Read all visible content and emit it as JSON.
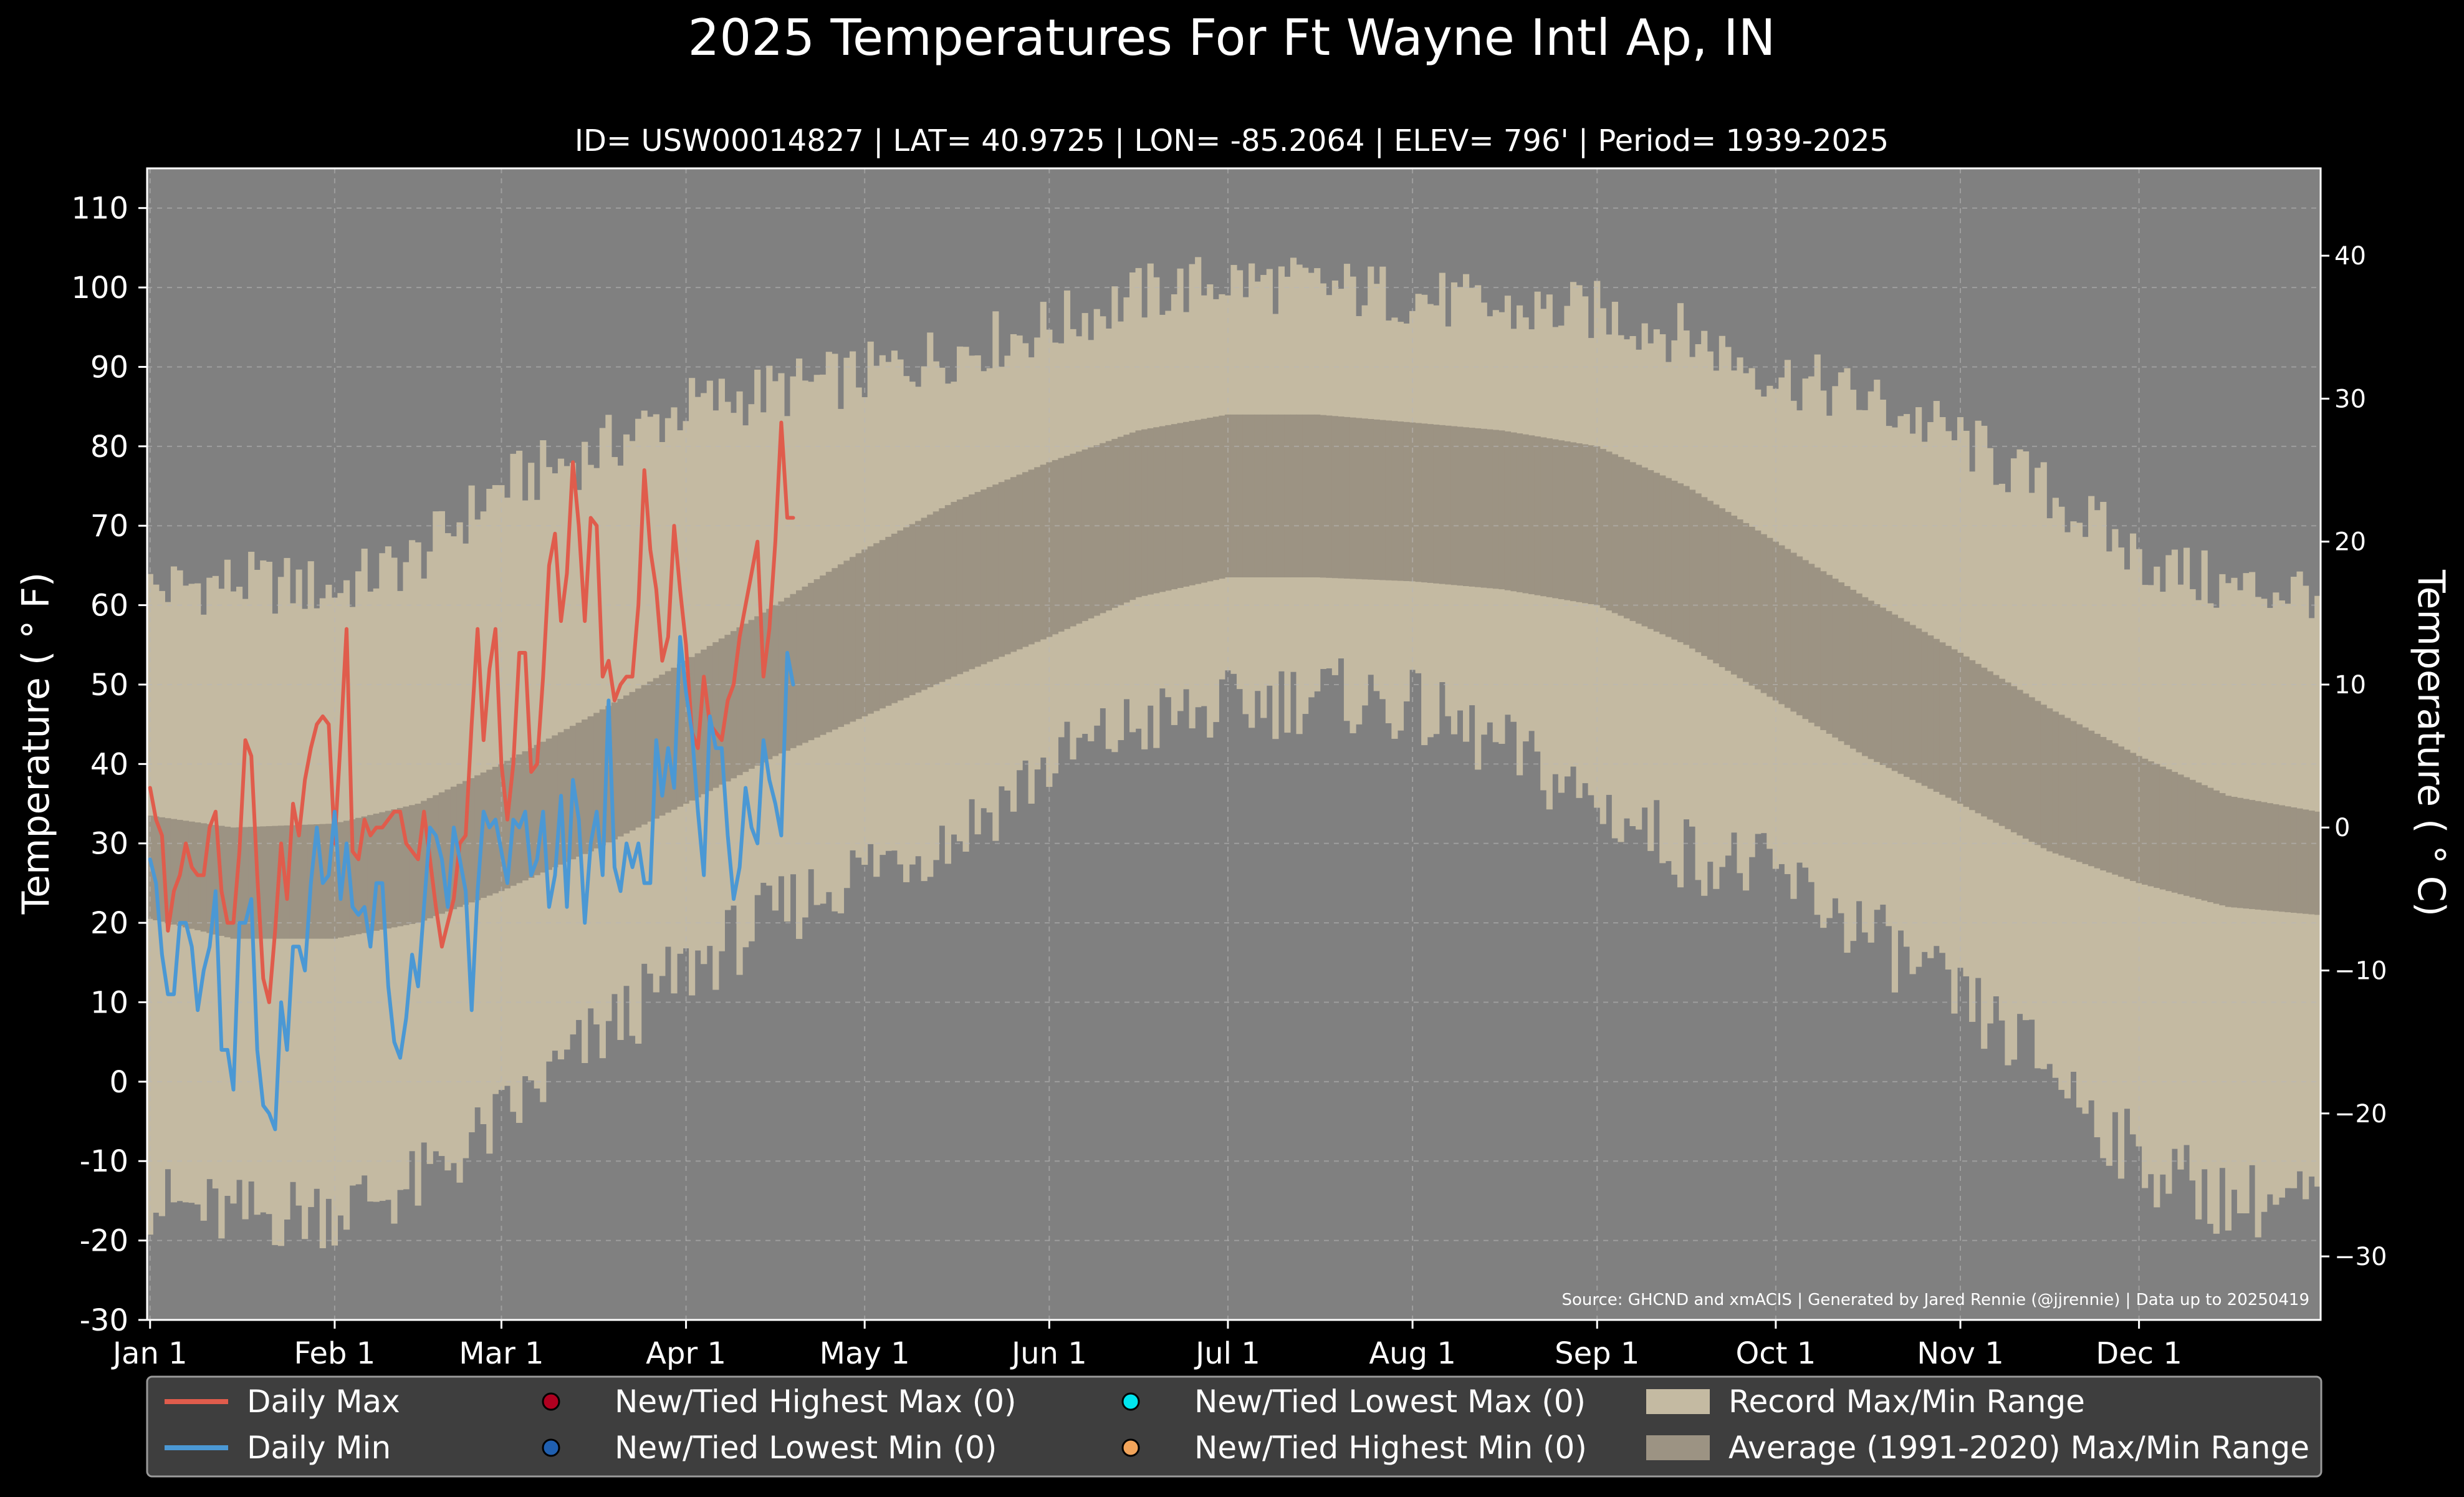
{
  "chart_data": {
    "type": "area",
    "title": "2025 Temperatures For Ft Wayne Intl Ap, IN",
    "subtitle": "ID= USW00014827 | LAT= 40.9725 | LON= -85.2064 | ELEV= 796' | Period= 1939-2025",
    "ylabel": "Temperature ($^\\circ$F)",
    "ylabel_display": "Temperature ( ° F)",
    "y2label_display": "Temperature ( ° C)",
    "ylim": [
      -30,
      115
    ],
    "y_ticks": [
      -30,
      -20,
      -10,
      0,
      10,
      20,
      30,
      40,
      50,
      60,
      70,
      80,
      90,
      100,
      110
    ],
    "y2_ticks": [
      -30,
      -20,
      -10,
      0,
      10,
      20,
      30,
      40
    ],
    "xlim": [
      1,
      365
    ],
    "month_labels": [
      {
        "label": "Jan 1",
        "day": 1
      },
      {
        "label": "Feb 1",
        "day": 32
      },
      {
        "label": "Mar 1",
        "day": 60
      },
      {
        "label": "Apr 1",
        "day": 91
      },
      {
        "label": "May 1",
        "day": 121
      },
      {
        "label": "Jun 1",
        "day": 152
      },
      {
        "label": "Jul 1",
        "day": 182
      },
      {
        "label": "Aug 1",
        "day": 213
      },
      {
        "label": "Sep 1",
        "day": 244
      },
      {
        "label": "Oct 1",
        "day": 274
      },
      {
        "label": "Nov 1",
        "day": 305
      },
      {
        "label": "Dec 1",
        "day": 335
      }
    ],
    "grid": true,
    "legend_position": "bottom",
    "source_note": "Source: GHCND and xmACIS | Generated by Jared Rennie (@jjrennie) | Data up to 20250419",
    "record_range_anchors": {
      "day": [
        1,
        15,
        32,
        46,
        60,
        75,
        91,
        106,
        121,
        136,
        152,
        167,
        182,
        197,
        213,
        228,
        244,
        259,
        274,
        289,
        305,
        320,
        335,
        350,
        365
      ],
      "record_max": [
        62,
        63,
        62,
        66,
        75,
        79,
        85,
        87,
        89,
        92,
        95,
        99,
        101,
        100,
        99,
        97,
        97,
        94,
        89,
        86,
        81,
        74,
        66,
        62,
        62
      ],
      "record_min": [
        -15,
        -17,
        -16,
        -13,
        -5,
        5,
        14,
        21,
        27,
        31,
        40,
        45,
        47,
        49,
        47,
        42,
        35,
        29,
        26,
        19,
        10,
        2,
        -10,
        -15,
        -15
      ]
    },
    "normal_range_anchors": {
      "day": [
        1,
        15,
        32,
        46,
        60,
        75,
        91,
        106,
        121,
        136,
        152,
        167,
        182,
        197,
        213,
        228,
        244,
        259,
        274,
        289,
        305,
        320,
        335,
        350,
        365
      ],
      "normal_max": [
        33.5,
        32,
        32.5,
        35,
        40,
        46,
        53,
        60,
        67,
        73,
        78,
        82,
        84,
        84,
        83,
        82,
        80,
        75,
        68,
        61,
        54,
        47,
        41,
        36,
        34
      ],
      "normal_min": [
        20.5,
        18,
        18,
        20,
        24,
        29,
        35,
        41,
        46,
        51,
        56,
        61,
        63.5,
        63.5,
        63,
        62,
        60,
        55,
        48,
        41,
        35,
        29,
        25,
        22,
        21
      ]
    },
    "series": [
      {
        "name": "Daily Max",
        "color": "#e05c4c",
        "x": [
          1,
          2,
          3,
          4,
          5,
          6,
          7,
          8,
          9,
          10,
          11,
          12,
          13,
          14,
          15,
          16,
          17,
          18,
          19,
          20,
          21,
          22,
          23,
          24,
          25,
          26,
          27,
          28,
          29,
          30,
          31,
          32,
          33,
          34,
          35,
          36,
          37,
          38,
          39,
          40,
          41,
          42,
          43,
          44,
          45,
          46,
          47,
          48,
          49,
          50,
          51,
          52,
          53,
          54,
          55,
          56,
          57,
          58,
          59,
          60,
          61,
          62,
          63,
          64,
          65,
          66,
          67,
          68,
          69,
          70,
          71,
          72,
          73,
          74,
          75,
          76,
          77,
          78,
          79,
          80,
          81,
          82,
          83,
          84,
          85,
          86,
          87,
          88,
          89,
          90,
          91,
          92,
          93,
          94,
          95,
          96,
          97,
          98,
          99,
          100,
          101,
          102,
          103,
          104,
          105,
          106,
          107,
          108,
          109
        ],
        "values": [
          37,
          33,
          31,
          19,
          24,
          26,
          30,
          27,
          26,
          26,
          32,
          34,
          24,
          20,
          20,
          29,
          43,
          41,
          26,
          13,
          10,
          19,
          30,
          23,
          35,
          31,
          38,
          42,
          45,
          46,
          45,
          30,
          43,
          57,
          29,
          28,
          33,
          31,
          32,
          32,
          33,
          34,
          34,
          30,
          29,
          28,
          34,
          28,
          22,
          17,
          20,
          23,
          30,
          31,
          45,
          57,
          43,
          52,
          57,
          40,
          33,
          40,
          54,
          54,
          39,
          40,
          51,
          65,
          69,
          58,
          64,
          78,
          70,
          58,
          71,
          70,
          51,
          53,
          48,
          50,
          51,
          51,
          60,
          77,
          67,
          62,
          53,
          56,
          70,
          62,
          55,
          44,
          42,
          51,
          45,
          44,
          43,
          48,
          50,
          56,
          60,
          64,
          68,
          51,
          57,
          68,
          83,
          71,
          71
        ],
        "lineWidth": 6
      },
      {
        "name": "Daily Min",
        "color": "#4b98d4",
        "x": [
          1,
          2,
          3,
          4,
          5,
          6,
          7,
          8,
          9,
          10,
          11,
          12,
          13,
          14,
          15,
          16,
          17,
          18,
          19,
          20,
          21,
          22,
          23,
          24,
          25,
          26,
          27,
          28,
          29,
          30,
          31,
          32,
          33,
          34,
          35,
          36,
          37,
          38,
          39,
          40,
          41,
          42,
          43,
          44,
          45,
          46,
          47,
          48,
          49,
          50,
          51,
          52,
          53,
          54,
          55,
          56,
          57,
          58,
          59,
          60,
          61,
          62,
          63,
          64,
          65,
          66,
          67,
          68,
          69,
          70,
          71,
          72,
          73,
          74,
          75,
          76,
          77,
          78,
          79,
          80,
          81,
          82,
          83,
          84,
          85,
          86,
          87,
          88,
          89,
          90,
          91,
          92,
          93,
          94,
          95,
          96,
          97,
          98,
          99,
          100,
          101,
          102,
          103,
          104,
          105,
          106,
          107,
          108,
          109
        ],
        "values": [
          28,
          25,
          16,
          11,
          11,
          20,
          20,
          17,
          9,
          14,
          17,
          24,
          4,
          4,
          -1,
          20,
          20,
          23,
          4,
          -3,
          -4,
          -6,
          10,
          4,
          17,
          17,
          14,
          25,
          32,
          25,
          26,
          34,
          23,
          30,
          22,
          21,
          22,
          17,
          25,
          25,
          12,
          5,
          3,
          8,
          16,
          12,
          22,
          32,
          31,
          28,
          22,
          32,
          28,
          24,
          9,
          24,
          34,
          32,
          33,
          29,
          25,
          33,
          32,
          34,
          26,
          28,
          34,
          22,
          26,
          36,
          22,
          38,
          33,
          20,
          30,
          34,
          26,
          48,
          27,
          24,
          30,
          27,
          30,
          25,
          25,
          43,
          36,
          42,
          37,
          56,
          49,
          44,
          34,
          26,
          46,
          42,
          42,
          31,
          23,
          27,
          37,
          32,
          30,
          43,
          38,
          35,
          31,
          54,
          50
        ],
        "lineWidth": 6
      }
    ],
    "legend": [
      {
        "label": "Daily Max",
        "kind": "line",
        "color": "#e05c4c"
      },
      {
        "label": "New/Tied Highest Max (0)",
        "kind": "dot",
        "color": "#b00020"
      },
      {
        "label": "New/Tied Lowest Max (0)",
        "kind": "dot",
        "color": "#00e5ee"
      },
      {
        "label": "Record Max/Min Range",
        "kind": "patch",
        "color": "#c4baa2"
      },
      {
        "label": "Daily Min",
        "kind": "line",
        "color": "#4b98d4"
      },
      {
        "label": "New/Tied Lowest Min (0)",
        "kind": "dot",
        "color": "#1f5fb0"
      },
      {
        "label": "New/Tied Highest Min (0)",
        "kind": "dot",
        "color": "#f2a45a"
      },
      {
        "label": "Average (1991-2020) Max/Min Range",
        "kind": "patch",
        "color": "#9c9383"
      }
    ],
    "colors": {
      "background": "#000000",
      "plot_background": "#808080",
      "record_range": "#c4baa2",
      "normal_range": "#9c9383",
      "grid": "#b8b8b8",
      "legend_background": "#3e3e3e"
    }
  }
}
